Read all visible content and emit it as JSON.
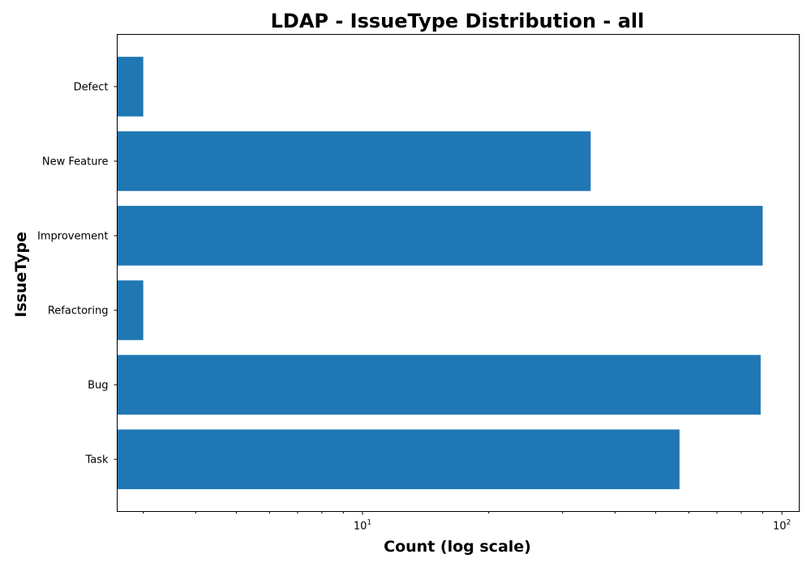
{
  "chart_data": {
    "type": "bar",
    "orientation": "horizontal",
    "title": "LDAP - IssueType Distribution - all",
    "xlabel": "Count (log scale)",
    "ylabel": "IssueType",
    "x_scale": "log",
    "xlim": [
      2.6,
      110
    ],
    "x_ticks": [
      {
        "value": 10,
        "base": "10",
        "exp": "1"
      },
      {
        "value": 100,
        "base": "10",
        "exp": "2"
      }
    ],
    "categories": [
      "Defect",
      "New Feature",
      "Improvement",
      "Refactoring",
      "Bug",
      "Task"
    ],
    "values": [
      3,
      35,
      90,
      3,
      89,
      57
    ],
    "bar_color": "#1f77b4",
    "grid": false,
    "legend": false
  }
}
